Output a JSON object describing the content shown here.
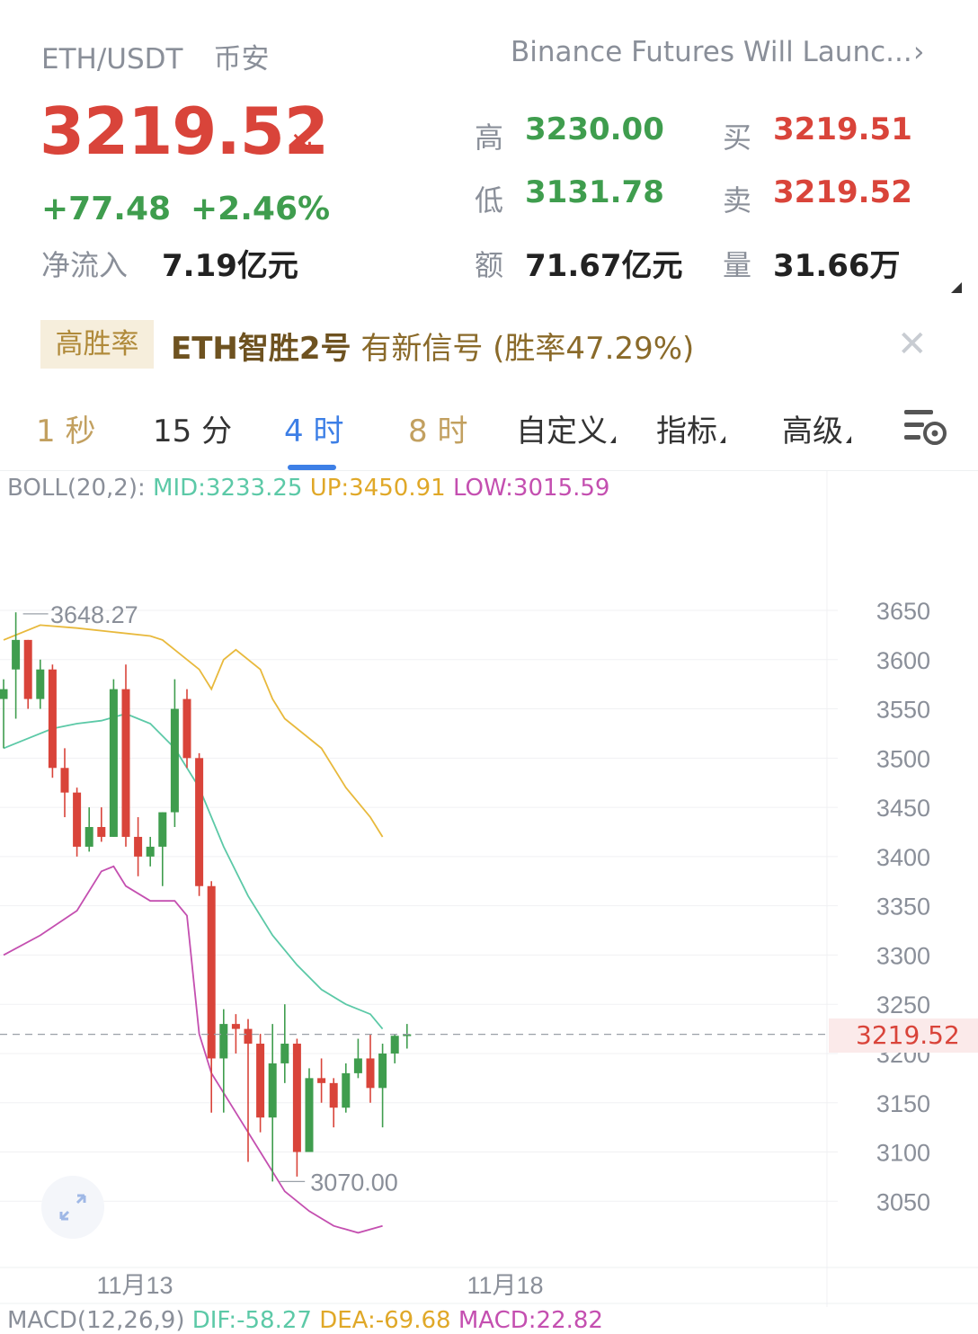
{
  "header": {
    "pair": "ETH/USDT",
    "exchange": "币安",
    "news": "Binance Futures Will Launc...",
    "news_chevron": "›"
  },
  "ticker": {
    "price": "3219.52",
    "price_arrow": "↘",
    "change": "+77.48",
    "change_pct": "+2.46%",
    "net_inflow_label": "净流入",
    "net_inflow": "7.19亿元",
    "high_label": "高",
    "high": "3230.00",
    "low_label": "低",
    "low": "3131.78",
    "amount_label": "额",
    "amount": "71.67亿元",
    "bid_label": "买",
    "bid": "3219.51",
    "ask_label": "卖",
    "ask": "3219.52",
    "volume_label": "量",
    "volume": "31.66万"
  },
  "signal": {
    "badge": "高胜率",
    "name": "ETH智胜2号",
    "text": "有新信号 (胜率47.29%)",
    "close": "✕"
  },
  "tabs": [
    {
      "label": "1 秒",
      "state": "muted"
    },
    {
      "label": "15 分",
      "state": "normal"
    },
    {
      "label": "4 时",
      "state": "active"
    },
    {
      "label": "8 时",
      "state": "muted"
    },
    {
      "label": "自定义",
      "state": "dropdown"
    },
    {
      "label": "指标",
      "state": "dropdown"
    },
    {
      "label": "高级",
      "state": "dropdown"
    }
  ],
  "indicators": {
    "boll_name": "BOLL(20,2): ",
    "boll_mid": "MID:3233.25",
    "boll_up": "UP:3450.91",
    "boll_low": "LOW:3015.59",
    "macd_name": "MACD(12,26,9) ",
    "macd_dif": "DIF:-58.27",
    "macd_dea": "DEA:-69.68",
    "macd_val": "MACD:22.82"
  },
  "colors": {
    "up": "#3f9d4e",
    "down": "#d9443a",
    "boll_mid": "#5cc9a7",
    "boll_up": "#e8b93c",
    "boll_low": "#c44fb0",
    "accent": "#3d7fe6"
  },
  "chart_data": {
    "type": "candlestick",
    "y_ticks": [
      3650,
      3600,
      3550,
      3500,
      3450,
      3400,
      3350,
      3300,
      3250,
      3200,
      3150,
      3100,
      3050
    ],
    "x_labels": [
      "11月13",
      "11月18"
    ],
    "current_price": "3219.52",
    "high_marker": "3648.27",
    "low_marker": "3070.00",
    "candles": [
      {
        "o": 3560,
        "h": 3580,
        "l": 3510,
        "c": 3570
      },
      {
        "o": 3590,
        "h": 3648,
        "l": 3540,
        "c": 3620
      },
      {
        "o": 3620,
        "h": 3620,
        "l": 3550,
        "c": 3560
      },
      {
        "o": 3560,
        "h": 3600,
        "l": 3550,
        "c": 3590
      },
      {
        "o": 3590,
        "h": 3595,
        "l": 3480,
        "c": 3490
      },
      {
        "o": 3490,
        "h": 3510,
        "l": 3440,
        "c": 3465
      },
      {
        "o": 3465,
        "h": 3470,
        "l": 3400,
        "c": 3410
      },
      {
        "o": 3410,
        "h": 3450,
        "l": 3405,
        "c": 3430
      },
      {
        "o": 3430,
        "h": 3450,
        "l": 3415,
        "c": 3420
      },
      {
        "o": 3420,
        "h": 3580,
        "l": 3420,
        "c": 3570
      },
      {
        "o": 3570,
        "h": 3595,
        "l": 3410,
        "c": 3420
      },
      {
        "o": 3420,
        "h": 3440,
        "l": 3380,
        "c": 3400
      },
      {
        "o": 3400,
        "h": 3420,
        "l": 3390,
        "c": 3410
      },
      {
        "o": 3410,
        "h": 3445,
        "l": 3370,
        "c": 3445
      },
      {
        "o": 3445,
        "h": 3580,
        "l": 3430,
        "c": 3550
      },
      {
        "o": 3560,
        "h": 3570,
        "l": 3490,
        "c": 3500
      },
      {
        "o": 3500,
        "h": 3505,
        "l": 3360,
        "c": 3370
      },
      {
        "o": 3370,
        "h": 3375,
        "l": 3140,
        "c": 3195
      },
      {
        "o": 3195,
        "h": 3245,
        "l": 3140,
        "c": 3230
      },
      {
        "o": 3230,
        "h": 3240,
        "l": 3200,
        "c": 3225
      },
      {
        "o": 3225,
        "h": 3235,
        "l": 3090,
        "c": 3210
      },
      {
        "o": 3210,
        "h": 3220,
        "l": 3120,
        "c": 3135
      },
      {
        "o": 3135,
        "h": 3230,
        "l": 3070,
        "c": 3190
      },
      {
        "o": 3190,
        "h": 3250,
        "l": 3170,
        "c": 3210
      },
      {
        "o": 3210,
        "h": 3215,
        "l": 3075,
        "c": 3100
      },
      {
        "o": 3100,
        "h": 3185,
        "l": 3100,
        "c": 3175
      },
      {
        "o": 3175,
        "h": 3195,
        "l": 3150,
        "c": 3170
      },
      {
        "o": 3170,
        "h": 3175,
        "l": 3125,
        "c": 3145
      },
      {
        "o": 3145,
        "h": 3190,
        "l": 3140,
        "c": 3180
      },
      {
        "o": 3180,
        "h": 3215,
        "l": 3175,
        "c": 3195
      },
      {
        "o": 3195,
        "h": 3220,
        "l": 3150,
        "c": 3165
      },
      {
        "o": 3165,
        "h": 3210,
        "l": 3125,
        "c": 3200
      },
      {
        "o": 3200,
        "h": 3220,
        "l": 3190,
        "c": 3218
      },
      {
        "o": 3218,
        "h": 3230,
        "l": 3205,
        "c": 3219.52
      }
    ],
    "boll_up": [
      [
        0,
        3620
      ],
      [
        3,
        3635
      ],
      [
        6,
        3632
      ],
      [
        9,
        3628
      ],
      [
        12,
        3624
      ],
      [
        13,
        3620
      ],
      [
        16,
        3590
      ],
      [
        17,
        3570
      ],
      [
        18,
        3600
      ],
      [
        19,
        3610
      ],
      [
        21,
        3590
      ],
      [
        22,
        3560
      ],
      [
        23,
        3540
      ],
      [
        26,
        3510
      ],
      [
        28,
        3470
      ],
      [
        30,
        3440
      ],
      [
        31,
        3420
      ]
    ],
    "boll_mid": [
      [
        0,
        3510
      ],
      [
        2,
        3520
      ],
      [
        4,
        3530
      ],
      [
        6,
        3535
      ],
      [
        8,
        3538
      ],
      [
        10,
        3545
      ],
      [
        12,
        3535
      ],
      [
        14,
        3510
      ],
      [
        16,
        3470
      ],
      [
        18,
        3410
      ],
      [
        20,
        3360
      ],
      [
        22,
        3320
      ],
      [
        24,
        3290
      ],
      [
        26,
        3265
      ],
      [
        28,
        3250
      ],
      [
        30,
        3240
      ],
      [
        31,
        3225
      ]
    ],
    "boll_low": [
      [
        0,
        3300
      ],
      [
        3,
        3320
      ],
      [
        6,
        3345
      ],
      [
        8,
        3385
      ],
      [
        9,
        3390
      ],
      [
        10,
        3370
      ],
      [
        12,
        3355
      ],
      [
        14,
        3355
      ],
      [
        15,
        3340
      ],
      [
        16,
        3220
      ],
      [
        17,
        3180
      ],
      [
        19,
        3140
      ],
      [
        21,
        3100
      ],
      [
        23,
        3060
      ],
      [
        25,
        3040
      ],
      [
        27,
        3025
      ],
      [
        29,
        3018
      ],
      [
        31,
        3025
      ]
    ]
  }
}
